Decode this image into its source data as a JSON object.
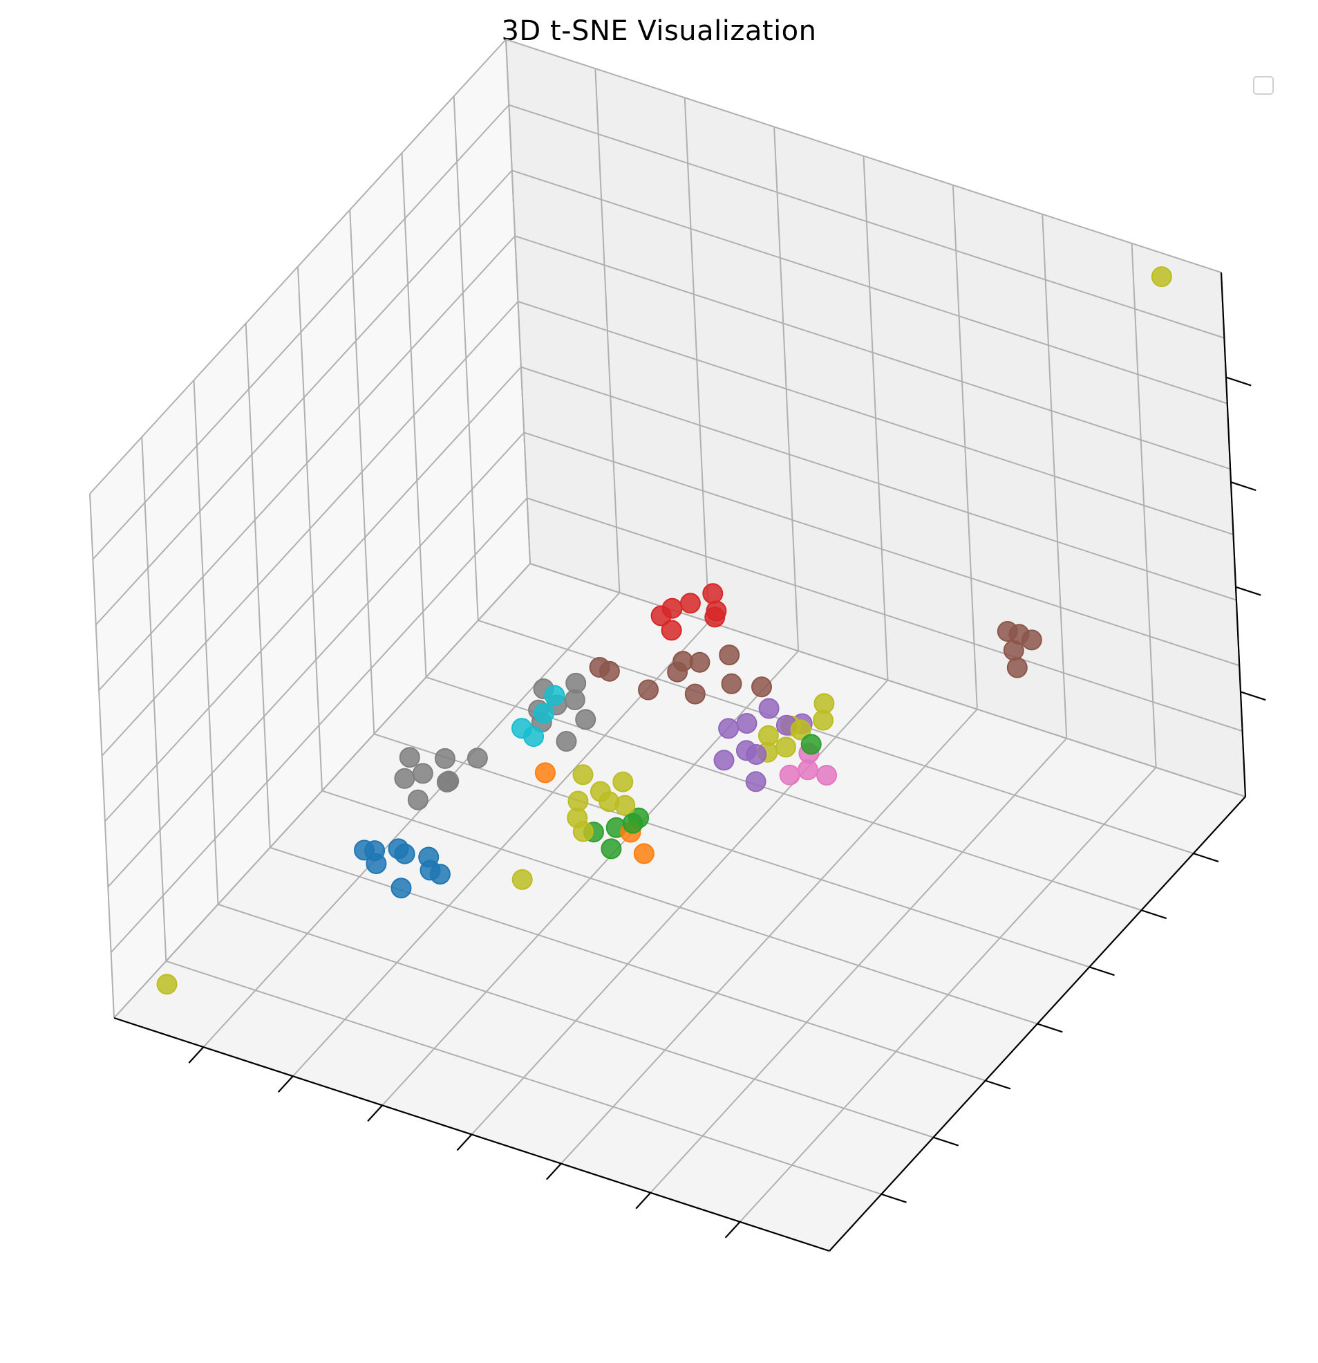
{
  "chart_data": {
    "type": "scatter",
    "projection": "3d",
    "title": "3D t-SNE Visualization",
    "xlabel": "",
    "ylabel": "",
    "zlabel": "",
    "tick_labels_visible": false,
    "grid": true,
    "legend": {
      "placement": "top-right",
      "entries": []
    },
    "xlim": [
      0,
      10
    ],
    "ylim": [
      0,
      10
    ],
    "zlim": [
      0,
      10
    ],
    "series": [
      {
        "color": "#1f77b4",
        "points": [
          [
            1.9,
            3.1,
            1.1
          ],
          [
            2.1,
            3.3,
            1.3
          ],
          [
            2.3,
            3.0,
            0.9
          ],
          [
            1.7,
            3.4,
            1.0
          ],
          [
            2.6,
            3.2,
            1.2
          ],
          [
            2.0,
            3.6,
            0.9
          ],
          [
            2.4,
            3.5,
            1.1
          ],
          [
            2.8,
            3.1,
            1.3
          ],
          [
            1.8,
            3.0,
            1.4
          ]
        ]
      },
      {
        "color": "#ff7f0e",
        "points": [
          [
            4.6,
            4.6,
            1.6
          ],
          [
            4.9,
            4.4,
            1.5
          ],
          [
            3.8,
            4.0,
            2.9
          ]
        ]
      },
      {
        "color": "#2ca02c",
        "points": [
          [
            4.4,
            4.6,
            1.6
          ],
          [
            4.6,
            4.8,
            1.7
          ],
          [
            4.5,
            4.3,
            1.5
          ],
          [
            4.2,
            4.4,
            1.6
          ],
          [
            4.7,
            4.5,
            1.9
          ],
          [
            6.6,
            5.6,
            3.3
          ]
        ]
      },
      {
        "color": "#d62728",
        "points": [
          [
            3.6,
            7.4,
            3.0
          ],
          [
            3.8,
            7.5,
            3.1
          ],
          [
            4.1,
            7.6,
            3.0
          ],
          [
            3.5,
            7.3,
            2.9
          ],
          [
            3.7,
            7.2,
            2.8
          ],
          [
            4.0,
            7.7,
            3.2
          ],
          [
            4.2,
            7.4,
            3.1
          ]
        ]
      },
      {
        "color": "#9467bd",
        "points": [
          [
            5.6,
            5.2,
            2.9
          ],
          [
            5.8,
            5.4,
            3.0
          ],
          [
            6.0,
            5.3,
            3.1
          ],
          [
            5.7,
            5.6,
            3.3
          ],
          [
            6.2,
            5.7,
            3.4
          ],
          [
            5.5,
            5.5,
            3.2
          ],
          [
            6.3,
            5.9,
            3.3
          ],
          [
            5.9,
            5.8,
            3.5
          ],
          [
            6.1,
            5.1,
            2.8
          ]
        ]
      },
      {
        "color": "#8c564b",
        "points": [
          [
            7.6,
            8.6,
            3.3
          ],
          [
            7.8,
            8.4,
            3.2
          ],
          [
            8.0,
            8.5,
            3.4
          ],
          [
            7.7,
            8.7,
            3.2
          ],
          [
            7.9,
            8.3,
            3.0
          ],
          [
            4.5,
            6.0,
            3.4
          ],
          [
            4.7,
            6.2,
            3.5
          ],
          [
            5.0,
            6.4,
            3.6
          ],
          [
            4.4,
            6.3,
            3.3
          ],
          [
            4.8,
            5.9,
            3.2
          ],
          [
            5.2,
            6.1,
            3.4
          ],
          [
            3.4,
            6.0,
            3.0
          ],
          [
            3.6,
            5.9,
            3.1
          ],
          [
            5.5,
            6.3,
            3.3
          ],
          [
            4.2,
            5.8,
            3.1
          ]
        ]
      },
      {
        "color": "#e377c2",
        "points": [
          [
            6.4,
            5.4,
            2.8
          ],
          [
            6.6,
            5.5,
            2.9
          ],
          [
            6.8,
            5.6,
            2.8
          ],
          [
            6.5,
            5.7,
            3.0
          ]
        ]
      },
      {
        "color": "#7f7f7f",
        "points": [
          [
            1.8,
            4.0,
            1.9
          ],
          [
            2.0,
            4.1,
            2.0
          ],
          [
            2.2,
            4.3,
            2.2
          ],
          [
            1.7,
            4.3,
            2.0
          ],
          [
            2.4,
            4.0,
            2.1
          ],
          [
            2.1,
            3.8,
            1.8
          ],
          [
            2.6,
            4.4,
            2.3
          ],
          [
            2.3,
            4.2,
            1.9
          ],
          [
            3.0,
            5.2,
            2.7
          ],
          [
            3.2,
            5.3,
            2.8
          ],
          [
            3.4,
            5.4,
            2.9
          ],
          [
            3.1,
            5.1,
            2.6
          ],
          [
            3.6,
            5.3,
            2.7
          ],
          [
            3.3,
            5.6,
            3.0
          ],
          [
            3.5,
            5.0,
            2.5
          ],
          [
            2.9,
            5.5,
            2.8
          ]
        ]
      },
      {
        "color": "#bcbd22",
        "points": [
          [
            0.4,
            0.6,
            0.3
          ],
          [
            9.4,
            9.6,
            10.0
          ],
          [
            4.0,
            4.4,
            2.1
          ],
          [
            4.2,
            4.6,
            2.2
          ],
          [
            4.4,
            4.8,
            2.3
          ],
          [
            4.1,
            4.2,
            2.0
          ],
          [
            4.6,
            4.5,
            2.2
          ],
          [
            4.3,
            4.0,
            2.0
          ],
          [
            3.9,
            4.7,
            2.3
          ],
          [
            4.5,
            4.3,
            2.4
          ],
          [
            6.0,
            5.6,
            3.2
          ],
          [
            6.2,
            5.8,
            3.3
          ],
          [
            6.4,
            5.7,
            3.4
          ],
          [
            6.1,
            5.4,
            3.1
          ],
          [
            6.6,
            5.9,
            3.5
          ],
          [
            6.3,
            5.5,
            3.2
          ],
          [
            6.5,
            6.1,
            3.6
          ],
          [
            3.9,
            3.2,
            1.6
          ]
        ]
      },
      {
        "color": "#17becf",
        "points": [
          [
            3.0,
            4.8,
            2.7
          ],
          [
            3.2,
            5.0,
            2.9
          ],
          [
            3.3,
            5.1,
            3.2
          ],
          [
            3.1,
            4.9,
            2.5
          ]
        ]
      }
    ]
  }
}
